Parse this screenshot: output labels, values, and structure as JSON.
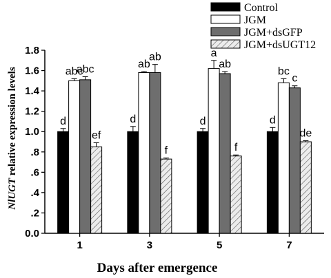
{
  "chart_data": {
    "type": "bar",
    "xlabel": "Days after emergence",
    "ylabel_italic": "NlUGT",
    "ylabel_rest": " relative expression levels",
    "categories": [
      "1",
      "3",
      "5",
      "7"
    ],
    "ylim": [
      0.0,
      1.8
    ],
    "yticks": [
      "0.0",
      ".2",
      ".4",
      ".6",
      ".8",
      "1.0",
      "1.2",
      "1.4",
      "1.6",
      "1.8"
    ],
    "ytick_values": [
      0.0,
      0.2,
      0.4,
      0.6,
      0.8,
      1.0,
      1.2,
      1.4,
      1.6,
      1.8
    ],
    "legend_position": "top-right",
    "series": [
      {
        "name": "Control",
        "style": "black",
        "values": [
          1.0,
          1.0,
          1.0,
          1.0
        ],
        "errors": [
          0.03,
          0.05,
          0.03,
          0.04
        ],
        "labels": [
          "d",
          "d",
          "d",
          "d"
        ]
      },
      {
        "name": "JGM",
        "style": "white",
        "values": [
          1.5,
          1.58,
          1.62,
          1.48
        ],
        "errors": [
          0.02,
          0.01,
          0.08,
          0.04
        ],
        "labels": [
          "abc",
          "ab",
          "a",
          "bc"
        ]
      },
      {
        "name": "JGM+dsGFP",
        "style": "gray",
        "values": [
          1.51,
          1.58,
          1.57,
          1.43
        ],
        "errors": [
          0.03,
          0.08,
          0.02,
          0.02
        ],
        "labels": [
          "abc",
          "ab",
          "ab",
          "c"
        ]
      },
      {
        "name": "JGM+dsUGT12",
        "style": "hatched",
        "values": [
          0.85,
          0.73,
          0.76,
          0.9
        ],
        "errors": [
          0.04,
          0.01,
          0.01,
          0.01
        ],
        "labels": [
          "ef",
          "f",
          "f",
          "de"
        ]
      }
    ]
  },
  "colors": {
    "Control": "#000000",
    "JGM": "#ffffff",
    "JGM+dsGFP": "#6e6e6e",
    "JGM+dsUGT12": "#e6e6e6"
  }
}
